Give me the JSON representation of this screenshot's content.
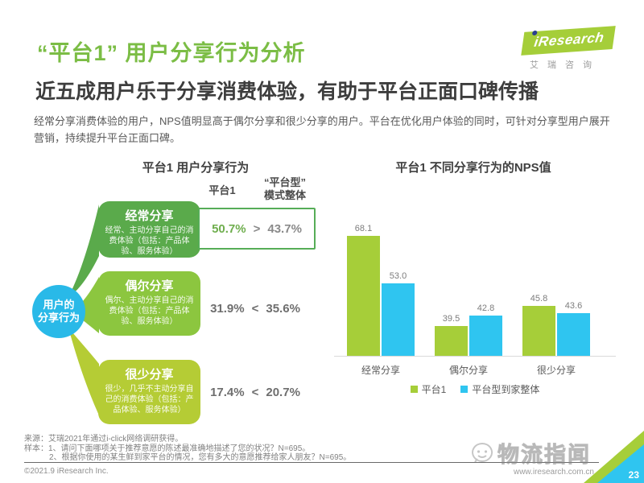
{
  "page": {
    "title": "“平台1” 用户分享行为分析",
    "headline": "近五成用户乐于分享消费体验，有助于平台正面口碑传播",
    "body": "经常分享消费体验的用户，NPS值明显高于偶尔分享和很少分享的用户。平台在优化用户体验的同时，可针对分享型用户展开营销，持续提升平台正面口碑。",
    "logo_brand": "iResearch",
    "logo_sub": "艾瑞咨询",
    "copyright": "©2021.9 iResearch Inc.",
    "website": "www.iresearch.com.cn",
    "watermark": "物流指闻",
    "page_number": "23"
  },
  "left_panel": {
    "title": "平台1 用户分享行为",
    "center_label": "用户的\n分享行为",
    "col1_header": "平台1",
    "col2_header": "“平台型”\n模式整体",
    "rows": [
      {
        "name": "经常分享",
        "desc": "经常、主动分享自己的消费体验（包括：产品体验、服务体验）",
        "platform1": "50.7%",
        "comparator": ">",
        "overall": "43.7%",
        "box_color": "#5aaa4b"
      },
      {
        "name": "偶尔分享",
        "desc": "偶尔、主动分享自己的消费体验（包括：产品体验、服务体验）",
        "platform1": "31.9%",
        "comparator": "<",
        "overall": "35.6%",
        "box_color": "#8cc63f"
      },
      {
        "name": "很少分享",
        "desc": "很少，几乎不主动分享自己的消费体验（包括：产品体验、服务体验）",
        "platform1": "17.4%",
        "comparator": "<",
        "overall": "20.7%",
        "box_color": "#b5cc35"
      }
    ]
  },
  "chart_data": {
    "type": "bar",
    "title": "平台1 不同分享行为的NPS值",
    "categories": [
      "经常分享",
      "偶尔分享",
      "很少分享"
    ],
    "series": [
      {
        "name": "平台1",
        "color": "#a6ce39",
        "values": [
          68.1,
          39.5,
          45.8
        ]
      },
      {
        "name": "平台型到家整体",
        "color": "#2fc5f0",
        "values": [
          53.0,
          42.8,
          43.6
        ]
      }
    ],
    "value_labels": true,
    "grid": false,
    "axes_hidden": true,
    "baseline_value": 30,
    "legend_position": "bottom"
  },
  "notes": {
    "source": "来源：艾瑞2021年通过i-click网络调研获得。",
    "sample1": "样本：1、请问下面哪项关于推荐意愿的陈述最准确地描述了您的状况？N=695。",
    "sample2": "2、根据你使用的某生鲜到家平台的情况，您有多大的意愿推荐给家人朋友？N=695。"
  },
  "colors": {
    "brand_green": "#7bbd45",
    "box_border_green": "#56ad57",
    "circle_blue": "#29b9e8",
    "bar_green": "#a6ce39",
    "bar_cyan": "#2fc5f0"
  }
}
